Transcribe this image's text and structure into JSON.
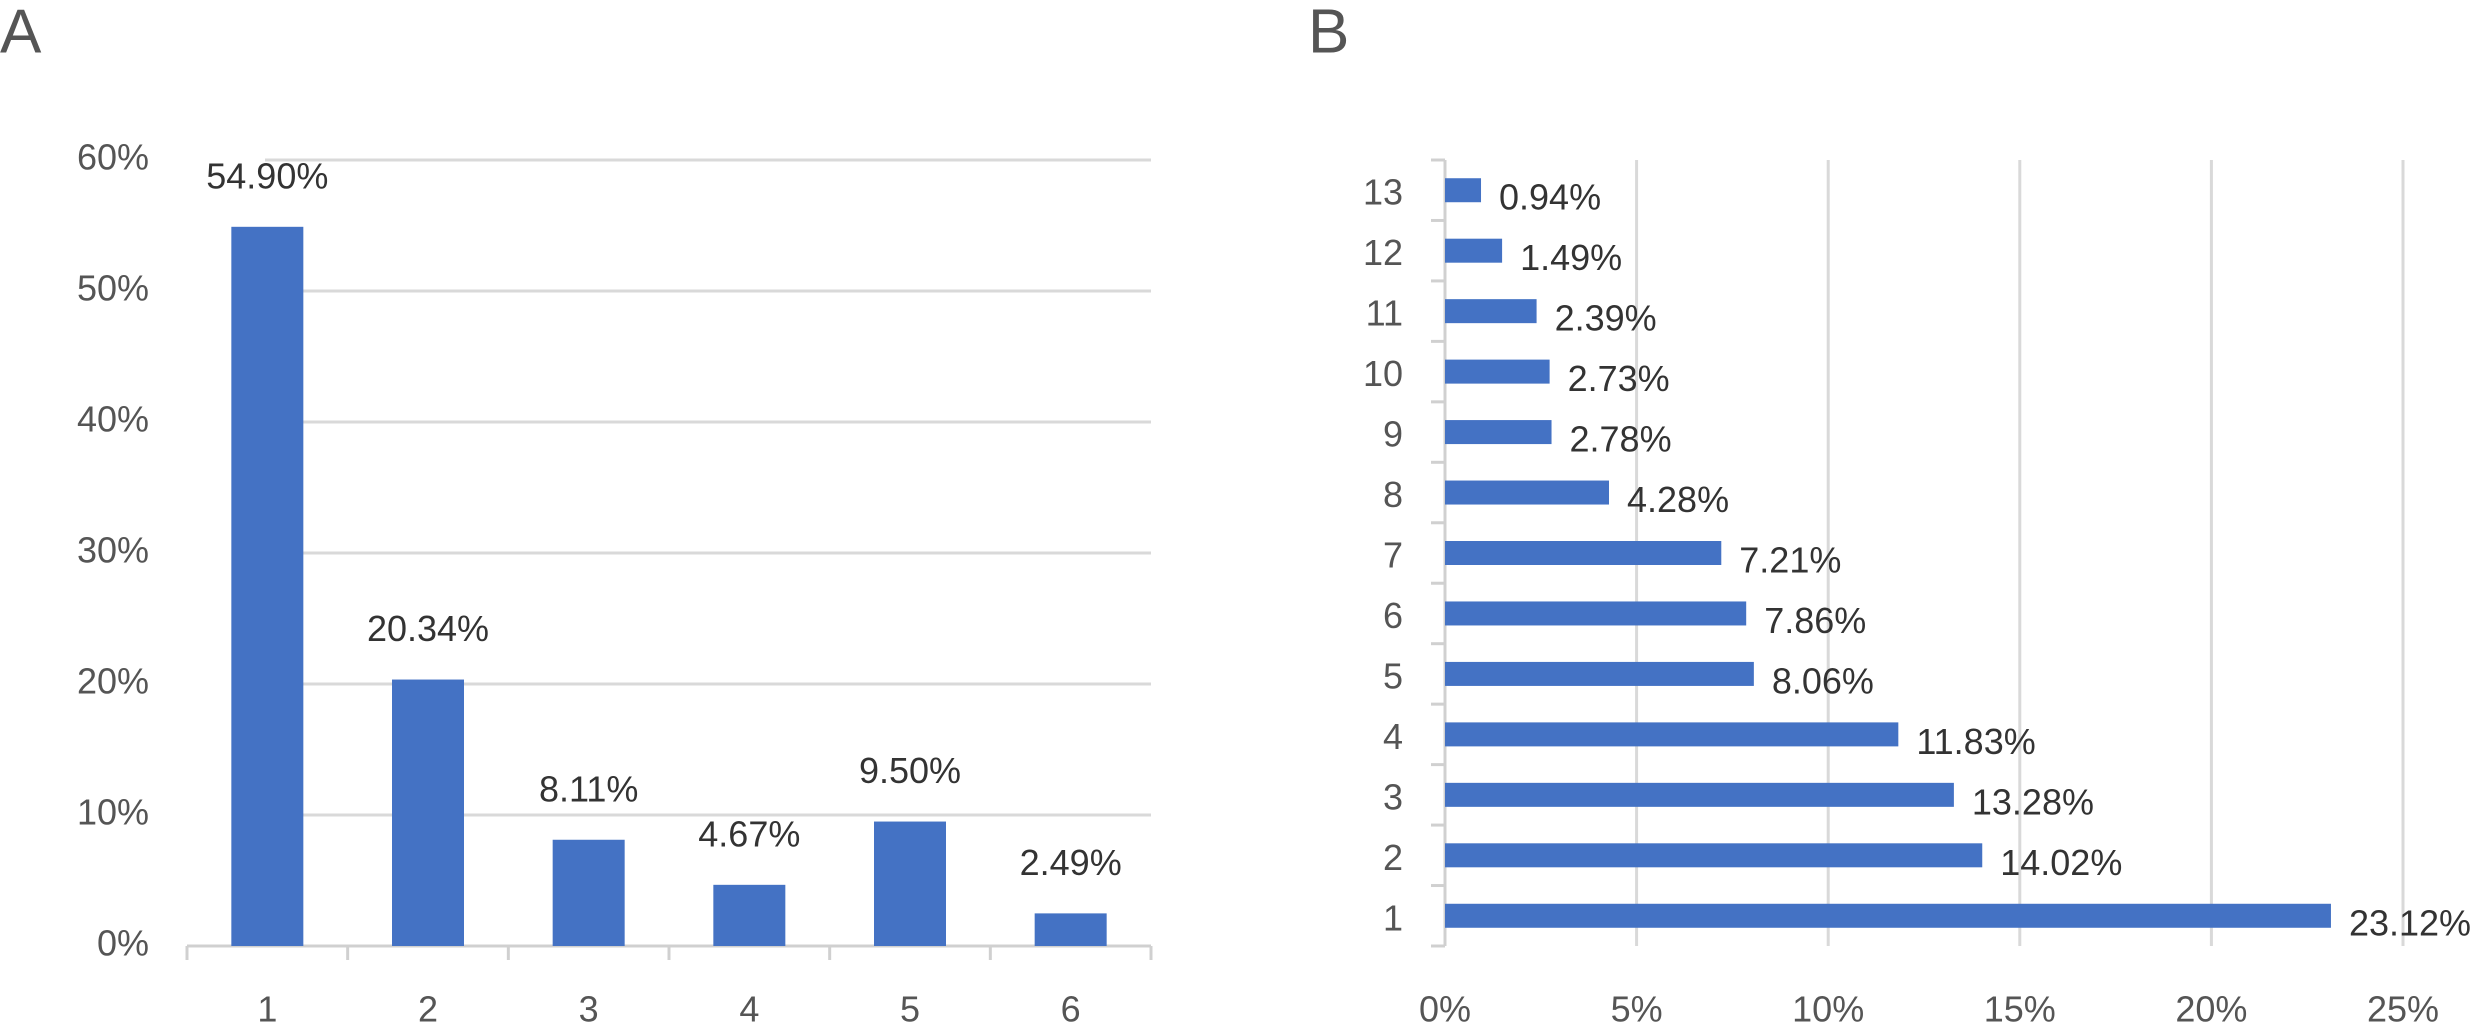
{
  "chart_data": [
    {
      "type": "bar",
      "title": "A",
      "categories": [
        "1",
        "2",
        "3",
        "4",
        "5",
        "6"
      ],
      "values": [
        54.9,
        20.34,
        8.11,
        4.67,
        9.5,
        2.49
      ],
      "value_labels": [
        "54.90%",
        "20.34%",
        "8.11%",
        "4.67%",
        "9.50%",
        "2.49%"
      ],
      "color": "#4472c4",
      "ylim": [
        0,
        60
      ],
      "yticks": [
        {
          "value": 0,
          "label": "0%"
        },
        {
          "value": 10,
          "label": "10%"
        },
        {
          "value": 20,
          "label": "20%"
        },
        {
          "value": 30,
          "label": "30%"
        },
        {
          "value": 40,
          "label": "40%"
        },
        {
          "value": 50,
          "label": "50%"
        },
        {
          "value": 60,
          "label": "60%"
        }
      ],
      "grid": true
    },
    {
      "type": "hbar",
      "title": "B",
      "categories": [
        "1",
        "2",
        "3",
        "4",
        "5",
        "6",
        "7",
        "8",
        "9",
        "10",
        "11",
        "12",
        "13"
      ],
      "values": [
        23.12,
        14.02,
        13.28,
        11.83,
        8.06,
        7.86,
        7.21,
        4.28,
        2.78,
        2.73,
        2.39,
        1.49,
        0.94
      ],
      "value_labels": [
        "23.12%",
        "14.02%",
        "13.28%",
        "11.83%",
        "8.06%",
        "7.86%",
        "7.21%",
        "4.28%",
        "2.78%",
        "2.73%",
        "2.39%",
        "1.49%",
        "0.94%"
      ],
      "color": "#4472c4",
      "xlim": [
        0,
        25
      ],
      "xticks": [
        {
          "value": 0,
          "label": "0%"
        },
        {
          "value": 5,
          "label": "5%"
        },
        {
          "value": 10,
          "label": "10%"
        },
        {
          "value": 15,
          "label": "15%"
        },
        {
          "value": 20,
          "label": "20%"
        },
        {
          "value": 25,
          "label": "25%"
        }
      ],
      "grid": true
    }
  ]
}
